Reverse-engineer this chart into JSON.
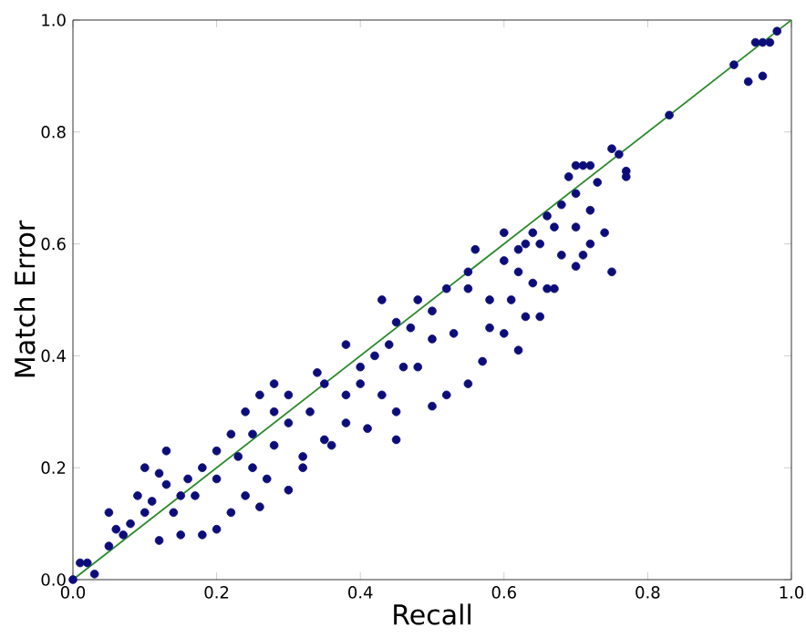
{
  "chart_data": {
    "type": "scatter",
    "xlabel": "Recall",
    "ylabel": "Match Error",
    "xlim": [
      0,
      1
    ],
    "ylim": [
      0,
      1
    ],
    "xticks": [
      {
        "value": 0,
        "label": "0.0"
      },
      {
        "value": 0.2,
        "label": "0.2"
      },
      {
        "value": 0.4,
        "label": "0.4"
      },
      {
        "value": 0.6,
        "label": "0.6"
      },
      {
        "value": 0.8,
        "label": "0.8"
      },
      {
        "value": 1,
        "label": "1.0"
      }
    ],
    "yticks": [
      {
        "value": 0,
        "label": "0.0"
      },
      {
        "value": 0.2,
        "label": "0.2"
      },
      {
        "value": 0.4,
        "label": "0.4"
      },
      {
        "value": 0.6,
        "label": "0.6"
      },
      {
        "value": 0.8,
        "label": "0.8"
      },
      {
        "value": 1,
        "label": "1.0"
      }
    ],
    "marker": "circle",
    "grid": false,
    "series": [
      {
        "color": "#0d0d7a",
        "x": [
          0.98,
          0.97,
          0.96,
          0.95,
          0.92,
          0.96,
          0.94,
          0.83,
          0.75,
          0.76,
          0.77,
          0.77,
          0.74,
          0.7,
          0.71,
          0.72,
          0.69,
          0.73,
          0.7,
          0.72,
          0.68,
          0.66,
          0.67,
          0.7,
          0.72,
          0.71,
          0.7,
          0.68,
          0.65,
          0.64,
          0.63,
          0.62,
          0.6,
          0.6,
          0.62,
          0.64,
          0.66,
          0.61,
          0.58,
          0.6,
          0.63,
          0.55,
          0.55,
          0.52,
          0.5,
          0.48,
          0.5,
          0.47,
          0.45,
          0.44,
          0.46,
          0.42,
          0.4,
          0.4,
          0.38,
          0.43,
          0.45,
          0.38,
          0.35,
          0.34,
          0.33,
          0.35,
          0.32,
          0.3,
          0.3,
          0.28,
          0.28,
          0.25,
          0.25,
          0.27,
          0.23,
          0.22,
          0.24,
          0.2,
          0.2,
          0.18,
          0.17,
          0.16,
          0.15,
          0.14,
          0.15,
          0.13,
          0.12,
          0.11,
          0.1,
          0.09,
          0.08,
          0.07,
          0.06,
          0.05,
          0.02,
          0.01,
          0.0,
          0.03,
          0.12,
          0.18,
          0.22,
          0.2,
          0.24,
          0.26,
          0.3,
          0.32,
          0.36,
          0.41,
          0.45,
          0.5,
          0.52,
          0.55,
          0.57,
          0.53,
          0.58,
          0.62,
          0.65,
          0.67,
          0.75,
          0.1,
          0.13,
          0.05,
          0.28,
          0.38,
          0.43,
          0.48,
          0.56,
          0.26
        ],
        "values": [
          0.98,
          0.96,
          0.96,
          0.96,
          0.92,
          0.9,
          0.89,
          0.83,
          0.77,
          0.76,
          0.72,
          0.73,
          0.62,
          0.74,
          0.74,
          0.74,
          0.72,
          0.71,
          0.69,
          0.66,
          0.67,
          0.65,
          0.63,
          0.63,
          0.6,
          0.58,
          0.56,
          0.58,
          0.6,
          0.62,
          0.6,
          0.59,
          0.57,
          0.62,
          0.55,
          0.53,
          0.52,
          0.5,
          0.5,
          0.44,
          0.47,
          0.55,
          0.52,
          0.52,
          0.48,
          0.5,
          0.43,
          0.45,
          0.46,
          0.42,
          0.38,
          0.4,
          0.38,
          0.35,
          0.33,
          0.33,
          0.3,
          0.28,
          0.35,
          0.37,
          0.3,
          0.25,
          0.22,
          0.28,
          0.33,
          0.24,
          0.35,
          0.26,
          0.2,
          0.18,
          0.22,
          0.26,
          0.3,
          0.23,
          0.18,
          0.2,
          0.15,
          0.18,
          0.15,
          0.12,
          0.08,
          0.17,
          0.19,
          0.14,
          0.12,
          0.15,
          0.1,
          0.08,
          0.09,
          0.06,
          0.03,
          0.03,
          0.0,
          0.01,
          0.07,
          0.08,
          0.12,
          0.09,
          0.15,
          0.13,
          0.16,
          0.2,
          0.24,
          0.27,
          0.25,
          0.31,
          0.33,
          0.35,
          0.39,
          0.44,
          0.45,
          0.41,
          0.47,
          0.52,
          0.55,
          0.2,
          0.23,
          0.12,
          0.3,
          0.42,
          0.5,
          0.38,
          0.59,
          0.33
        ]
      },
      {
        "type": "line",
        "color": "#2a8a2a",
        "x": [
          0,
          1
        ],
        "values": [
          0,
          1
        ],
        "marker": "none"
      }
    ]
  }
}
